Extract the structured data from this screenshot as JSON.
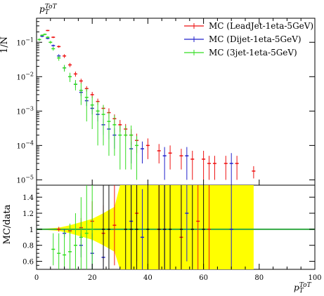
{
  "chart_data": [
    {
      "type": "scatter",
      "title": "",
      "ylabel": "1/N",
      "y_scale": "log",
      "ylim": [
        7e-06,
        0.5
      ],
      "xlim": [
        0,
        100
      ],
      "top_label": "p_T^ToT",
      "y_ticks": [
        {
          "value": 0.1,
          "base": "10",
          "exp": "−1"
        },
        {
          "value": 0.01,
          "base": "10",
          "exp": "−2"
        },
        {
          "value": 0.001,
          "base": "10",
          "exp": "−3"
        },
        {
          "value": 0.0001,
          "base": "10",
          "exp": "−4"
        },
        {
          "value": 1e-05,
          "base": "10",
          "exp": "−5"
        }
      ],
      "series": [
        {
          "name": "MC (LeadJet-1eta-5GeV)",
          "color": "#ee1111",
          "points": [
            {
              "x": 4,
              "y": 0.22,
              "err": 0.01
            },
            {
              "x": 6,
              "y": 0.14,
              "err": 0.008
            },
            {
              "x": 8,
              "y": 0.075,
              "err": 0.006
            },
            {
              "x": 10,
              "y": 0.04,
              "err": 0.005
            },
            {
              "x": 12,
              "y": 0.022,
              "err": 0.003
            },
            {
              "x": 14,
              "y": 0.012,
              "err": 0.002
            },
            {
              "x": 16,
              "y": 0.0075,
              "err": 0.0012
            },
            {
              "x": 18,
              "y": 0.0045,
              "err": 0.0008
            },
            {
              "x": 20,
              "y": 0.003,
              "err": 0.0006
            },
            {
              "x": 22,
              "y": 0.0019,
              "err": 0.0004
            },
            {
              "x": 24,
              "y": 0.0012,
              "err": 0.0003
            },
            {
              "x": 26,
              "y": 0.0009,
              "err": 0.0003
            },
            {
              "x": 28,
              "y": 0.0006,
              "err": 0.0002
            },
            {
              "x": 30,
              "y": 0.0004,
              "err": 0.00015
            },
            {
              "x": 32,
              "y": 0.0003,
              "err": 0.00012
            },
            {
              "x": 34,
              "y": 0.0002,
              "err": 0.0001
            },
            {
              "x": 36,
              "y": 0.00014,
              "err": 8e-05
            },
            {
              "x": 40,
              "y": 0.0001,
              "err": 6e-05
            },
            {
              "x": 44,
              "y": 7e-05,
              "err": 4e-05
            },
            {
              "x": 48,
              "y": 6e-05,
              "err": 4e-05
            },
            {
              "x": 52,
              "y": 5e-05,
              "err": 3e-05
            },
            {
              "x": 56,
              "y": 4e-05,
              "err": 3e-05
            },
            {
              "x": 60,
              "y": 4e-05,
              "err": 3e-05
            },
            {
              "x": 62,
              "y": 3e-05,
              "err": 2e-05
            },
            {
              "x": 64,
              "y": 3e-05,
              "err": 2e-05
            },
            {
              "x": 68,
              "y": 3e-05,
              "err": 2e-05
            },
            {
              "x": 72,
              "y": 3e-05,
              "err": 2e-05
            },
            {
              "x": 78,
              "y": 1.8e-05,
              "err": 7e-06
            }
          ]
        },
        {
          "name": "MC (Dijet-1eta-5GeV)",
          "color": "#2222cc",
          "points": [
            {
              "x": 2,
              "y": 0.15,
              "err": 0.01
            },
            {
              "x": 4,
              "y": 0.13,
              "err": 0.008
            },
            {
              "x": 6,
              "y": 0.08,
              "err": 0.006
            },
            {
              "x": 8,
              "y": 0.04,
              "err": 0.005
            },
            {
              "x": 10,
              "y": 0.018,
              "err": 0.003
            },
            {
              "x": 12,
              "y": 0.01,
              "err": 0.002
            },
            {
              "x": 14,
              "y": 0.006,
              "err": 0.0012
            },
            {
              "x": 16,
              "y": 0.0035,
              "err": 0.0008
            },
            {
              "x": 18,
              "y": 0.002,
              "err": 0.0006
            },
            {
              "x": 20,
              "y": 0.0012,
              "err": 0.0004
            },
            {
              "x": 22,
              "y": 0.0008,
              "err": 0.0003
            },
            {
              "x": 24,
              "y": 0.0004,
              "err": 0.0002
            },
            {
              "x": 26,
              "y": 0.0003,
              "err": 0.00015
            },
            {
              "x": 28,
              "y": 0.0002,
              "err": 0.00012
            },
            {
              "x": 34,
              "y": 8e-05,
              "err": 5e-05
            },
            {
              "x": 38,
              "y": 8e-05,
              "err": 5e-05
            },
            {
              "x": 46,
              "y": 5e-05,
              "err": 4e-05
            },
            {
              "x": 54,
              "y": 5e-05,
              "err": 4e-05
            },
            {
              "x": 70,
              "y": 3e-05,
              "err": 3e-05
            }
          ]
        },
        {
          "name": "MC (3jet-1eta-5GeV)",
          "color": "#33dd22",
          "points": [
            {
              "x": 1,
              "y": 0.12,
              "err": 0.01
            },
            {
              "x": 2,
              "y": 0.16,
              "err": 0.01
            },
            {
              "x": 3,
              "y": 0.17,
              "err": 0.01
            },
            {
              "x": 4,
              "y": 0.14,
              "err": 0.01
            },
            {
              "x": 5,
              "y": 0.1,
              "err": 0.01
            },
            {
              "x": 6,
              "y": 0.065,
              "err": 0.008
            },
            {
              "x": 8,
              "y": 0.035,
              "err": 0.006
            },
            {
              "x": 10,
              "y": 0.018,
              "err": 0.004
            },
            {
              "x": 12,
              "y": 0.01,
              "err": 0.003
            },
            {
              "x": 14,
              "y": 0.006,
              "err": 0.002
            },
            {
              "x": 16,
              "y": 0.004,
              "err": 0.0025
            },
            {
              "x": 18,
              "y": 0.0025,
              "err": 0.002
            },
            {
              "x": 20,
              "y": 0.0015,
              "err": 0.0012
            },
            {
              "x": 22,
              "y": 0.001,
              "err": 0.0009
            },
            {
              "x": 24,
              "y": 0.0008,
              "err": 0.0007
            },
            {
              "x": 26,
              "y": 0.0005,
              "err": 0.00045
            },
            {
              "x": 28,
              "y": 0.0004,
              "err": 0.00035
            },
            {
              "x": 30,
              "y": 0.0002,
              "err": 0.00018
            },
            {
              "x": 32,
              "y": 0.0002,
              "err": 0.00018
            },
            {
              "x": 34,
              "y": 0.0002,
              "err": 0.00018
            },
            {
              "x": 36,
              "y": 0.0001,
              "err": 9e-05
            }
          ]
        }
      ]
    },
    {
      "type": "scatter",
      "title": "",
      "ylabel": "MC/data",
      "xlabel": "p_T^ToT",
      "xlim": [
        0,
        100
      ],
      "ylim": [
        0.5,
        1.55
      ],
      "x_ticks": [
        0,
        20,
        40,
        60,
        80,
        100
      ],
      "y_ticks": [
        0.6,
        0.8,
        1,
        1.2,
        1.4
      ],
      "reference_line": 1,
      "band_color": "#ffff00",
      "band": {
        "x": [
          0,
          4,
          8,
          12,
          16,
          20,
          24,
          28,
          30,
          32,
          34,
          36,
          40,
          44,
          48,
          52,
          56,
          60,
          64,
          68,
          76,
          78
        ],
        "half_width": [
          0.005,
          0.01,
          0.02,
          0.05,
          0.09,
          0.13,
          0.2,
          0.28,
          0.6,
          0.6,
          0.6,
          0.6,
          0.6,
          0.6,
          0.6,
          0.6,
          0.6,
          0.6,
          0.6,
          0.6,
          0.6,
          0.6
        ]
      },
      "series": [
        {
          "name": "MC (LeadJet-1eta-5GeV)",
          "color": "#ee1111",
          "points": [
            {
              "x": 8,
              "y": 1.0,
              "err": 0.03
            },
            {
              "x": 12,
              "y": 0.98,
              "err": 0.06
            },
            {
              "x": 16,
              "y": 1.02,
              "err": 0.12
            },
            {
              "x": 20,
              "y": 1.1,
              "err": 0.25
            },
            {
              "x": 24,
              "y": 0.95,
              "err": 0.35
            },
            {
              "x": 28,
              "y": 1.05,
              "err": 0.5
            },
            {
              "x": 36,
              "y": 1.2,
              "err": 0.6
            },
            {
              "x": 44,
              "y": 1.0,
              "err": 0.6
            },
            {
              "x": 52,
              "y": 0.9,
              "err": 0.6
            },
            {
              "x": 58,
              "y": 1.1,
              "err": 0.6
            },
            {
              "x": 62,
              "y": 1.0,
              "err": 0.6
            }
          ]
        },
        {
          "name": "MC (Dijet-1eta-5GeV)",
          "color": "#2222cc",
          "points": [
            {
              "x": 10,
              "y": 0.95,
              "err": 0.05
            },
            {
              "x": 16,
              "y": 0.8,
              "err": 0.15
            },
            {
              "x": 20,
              "y": 0.7,
              "err": 0.25
            },
            {
              "x": 24,
              "y": 0.65,
              "err": 0.3
            },
            {
              "x": 34,
              "y": 1.1,
              "err": 0.6
            },
            {
              "x": 38,
              "y": 0.9,
              "err": 0.6
            },
            {
              "x": 46,
              "y": 1.0,
              "err": 0.6
            },
            {
              "x": 54,
              "y": 1.2,
              "err": 0.6
            },
            {
              "x": 70,
              "y": 1.0,
              "err": 0.6
            }
          ]
        },
        {
          "name": "MC (3jet-1eta-5GeV)",
          "color": "#33dd22",
          "points": [
            {
              "x": 6,
              "y": 0.75,
              "err": 0.2
            },
            {
              "x": 8,
              "y": 0.7,
              "err": 0.25
            },
            {
              "x": 10,
              "y": 0.68,
              "err": 0.3
            },
            {
              "x": 12,
              "y": 0.72,
              "err": 0.35
            },
            {
              "x": 14,
              "y": 0.8,
              "err": 0.4
            },
            {
              "x": 16,
              "y": 0.9,
              "err": 0.5
            },
            {
              "x": 18,
              "y": 0.95,
              "err": 0.6
            },
            {
              "x": 20,
              "y": 1.0,
              "err": 0.6
            }
          ]
        }
      ],
      "black_markers": [
        {
          "x": 24,
          "y": 1.0
        },
        {
          "x": 26,
          "y": 1.0
        },
        {
          "x": 32,
          "y": 1.0
        },
        {
          "x": 34,
          "y": 1.0
        },
        {
          "x": 36,
          "y": 1.0
        },
        {
          "x": 40,
          "y": 1.0
        },
        {
          "x": 44,
          "y": 1.0
        },
        {
          "x": 46,
          "y": 1.0
        },
        {
          "x": 48,
          "y": 1.0
        },
        {
          "x": 52,
          "y": 1.0
        },
        {
          "x": 56,
          "y": 1.0
        },
        {
          "x": 60,
          "y": 1.0
        }
      ]
    }
  ]
}
